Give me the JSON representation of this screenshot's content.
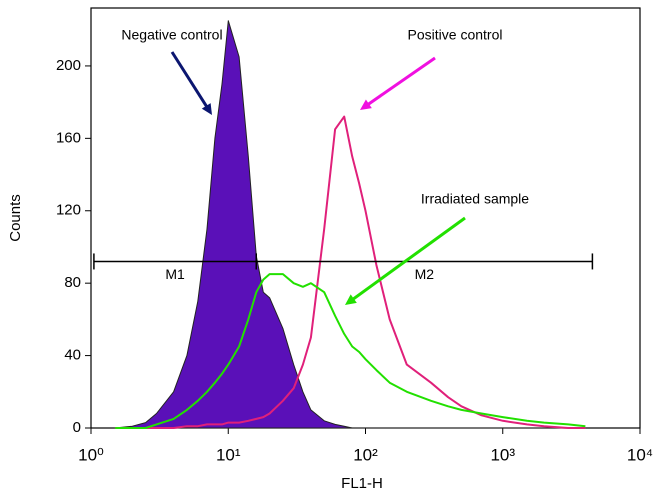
{
  "chart_data": {
    "type": "histogram-overlay",
    "xlabel": "FL1-H",
    "ylabel": "Counts",
    "xscale": "log",
    "xlim": [
      1,
      10000
    ],
    "ylim": [
      0,
      232
    ],
    "xticks": [
      {
        "value": 1,
        "label": "10⁰"
      },
      {
        "value": 10,
        "label": "10¹"
      },
      {
        "value": 100,
        "label": "10²"
      },
      {
        "value": 1000,
        "label": "10³"
      },
      {
        "value": 10000,
        "label": "10⁴"
      }
    ],
    "yticks": [
      0,
      40,
      80,
      120,
      160,
      200
    ],
    "x": [
      1.5,
      2,
      2.5,
      3,
      4,
      5,
      6,
      7,
      8,
      9,
      10,
      12,
      14,
      16,
      18,
      20,
      25,
      30,
      35,
      40,
      50,
      60,
      70,
      80,
      90,
      100,
      120,
      150,
      200,
      300,
      400,
      500,
      700,
      1000,
      1500,
      2000,
      3000,
      4000
    ],
    "series": [
      {
        "name": "Negative control",
        "color": "#5a10b8",
        "fill": true,
        "values": [
          0,
          1,
          3,
          8,
          20,
          40,
          70,
          110,
          160,
          190,
          225,
          205,
          150,
          95,
          75,
          72,
          55,
          35,
          20,
          10,
          4,
          2,
          1,
          0,
          0,
          0,
          0,
          0,
          0,
          0,
          0,
          0,
          0,
          0,
          0,
          0,
          0,
          0
        ]
      },
      {
        "name": "Positive control",
        "color": "#e0207a",
        "fill": false,
        "values": [
          0,
          0,
          0,
          0,
          0,
          1,
          1,
          2,
          2,
          2,
          3,
          3,
          4,
          5,
          6,
          8,
          15,
          22,
          35,
          50,
          110,
          165,
          172,
          150,
          135,
          120,
          90,
          60,
          35,
          25,
          17,
          12,
          7,
          4,
          2,
          1,
          0,
          0
        ]
      },
      {
        "name": "Irradiated sample",
        "color": "#22e000",
        "fill": false,
        "values": [
          0,
          0,
          0,
          2,
          5,
          10,
          15,
          20,
          25,
          30,
          35,
          45,
          60,
          75,
          82,
          85,
          85,
          80,
          78,
          80,
          75,
          62,
          52,
          45,
          42,
          38,
          32,
          25,
          20,
          15,
          12,
          10,
          8,
          6,
          4,
          3,
          2,
          1
        ]
      }
    ],
    "markers": [
      {
        "label": "M1",
        "range": [
          1.05,
          16
        ],
        "level": 92
      },
      {
        "label": "M2",
        "range": [
          16,
          4500
        ],
        "level": 92
      }
    ]
  }
}
